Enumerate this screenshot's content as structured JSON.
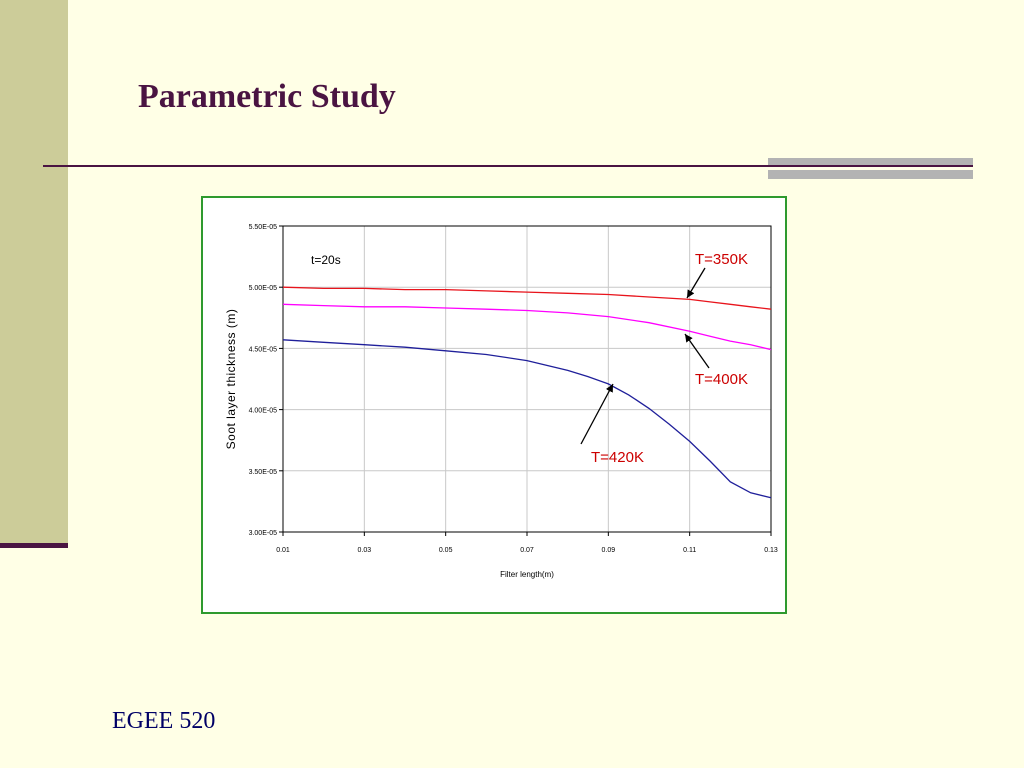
{
  "slide": {
    "title": "Parametric Study",
    "footer": "EGEE 520"
  },
  "colors": {
    "accent": "#4a1442",
    "side_band": "#cccc99",
    "background": "#ffffe6",
    "chart_border": "#2e9a2e",
    "annotation": "#cc0000"
  },
  "chart_data": {
    "type": "line",
    "xlabel": "Filter length(m)",
    "ylabel": "Soot layer thickness (m)",
    "annotation_time": "t=20s",
    "xlim": [
      0.01,
      0.13
    ],
    "ylim": [
      3e-05,
      5.5e-05
    ],
    "x_ticks": [
      "0.01",
      "0.03",
      "0.05",
      "0.07",
      "0.09",
      "0.11",
      "0.13"
    ],
    "y_ticks": [
      "3.00E-05",
      "3.50E-05",
      "4.00E-05",
      "4.50E-05",
      "5.00E-05",
      "5.50E-05"
    ],
    "grid": true,
    "series": [
      {
        "name": "T=350K",
        "color": "#e8141c",
        "x": [
          0.01,
          0.02,
          0.03,
          0.04,
          0.05,
          0.06,
          0.07,
          0.08,
          0.09,
          0.1,
          0.11,
          0.115,
          0.12,
          0.125,
          0.13
        ],
        "y": [
          5e-05,
          4.99e-05,
          4.99e-05,
          4.98e-05,
          4.98e-05,
          4.97e-05,
          4.96e-05,
          4.95e-05,
          4.94e-05,
          4.92e-05,
          4.9e-05,
          4.88e-05,
          4.86e-05,
          4.84e-05,
          4.82e-05
        ]
      },
      {
        "name": "T=400K",
        "color": "#ff00ff",
        "x": [
          0.01,
          0.02,
          0.03,
          0.04,
          0.05,
          0.06,
          0.07,
          0.08,
          0.09,
          0.1,
          0.11,
          0.115,
          0.12,
          0.125,
          0.13
        ],
        "y": [
          4.86e-05,
          4.85e-05,
          4.84e-05,
          4.84e-05,
          4.83e-05,
          4.82e-05,
          4.81e-05,
          4.79e-05,
          4.76e-05,
          4.71e-05,
          4.64e-05,
          4.6e-05,
          4.56e-05,
          4.53e-05,
          4.49e-05
        ]
      },
      {
        "name": "T=420K",
        "color": "#1f1f9a",
        "x": [
          0.01,
          0.02,
          0.03,
          0.04,
          0.05,
          0.06,
          0.07,
          0.08,
          0.085,
          0.09,
          0.095,
          0.1,
          0.105,
          0.11,
          0.115,
          0.12,
          0.125,
          0.13
        ],
        "y": [
          4.57e-05,
          4.55e-05,
          4.53e-05,
          4.51e-05,
          4.48e-05,
          4.45e-05,
          4.4e-05,
          4.32e-05,
          4.27e-05,
          4.21e-05,
          4.12e-05,
          4.01e-05,
          3.88e-05,
          3.74e-05,
          3.58e-05,
          3.41e-05,
          3.32e-05,
          3.28e-05
        ]
      }
    ],
    "annotations": [
      {
        "text": "T=350K"
      },
      {
        "text": "T=400K"
      },
      {
        "text": "T=420K"
      }
    ]
  }
}
